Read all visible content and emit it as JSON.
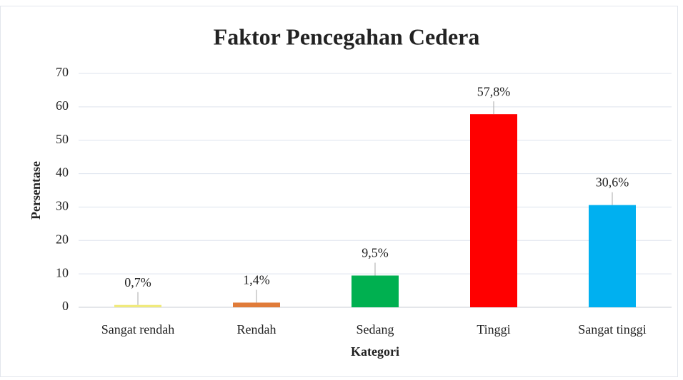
{
  "chart_data": {
    "type": "bar",
    "title": "Faktor Pencegahan Cedera",
    "x_label": "Kategori",
    "y_label": "Persentase",
    "categories": [
      "Sangat rendah",
      "Rendah",
      "Sedang",
      "Tinggi",
      "Sangat tinggi"
    ],
    "values": [
      0.7,
      1.4,
      9.5,
      57.8,
      30.6
    ],
    "value_labels": [
      "0,7%",
      "1,4%",
      "9,5%",
      "57,8%",
      "30,6%"
    ],
    "colors": [
      "#f0ea7c",
      "#e07b39",
      "#00b050",
      "#ff0000",
      "#00b0f0"
    ],
    "ylim": [
      0,
      70
    ],
    "yticks": [
      0,
      10,
      20,
      30,
      40,
      50,
      60,
      70
    ],
    "grid": true
  }
}
